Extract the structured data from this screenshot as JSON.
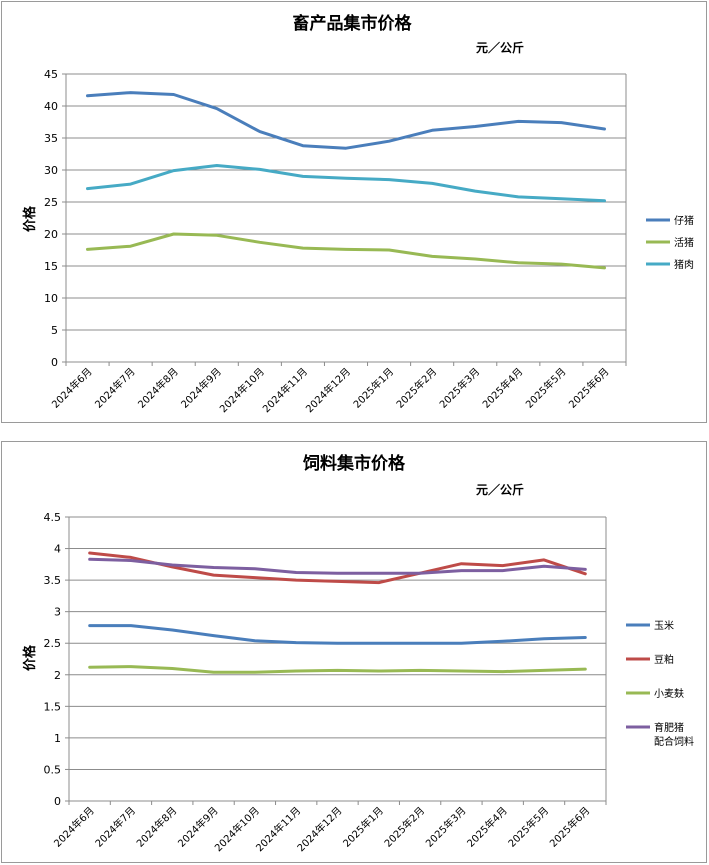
{
  "chart_data": [
    {
      "type": "line",
      "title": "畜产品集市价格",
      "unit": "元／公斤",
      "ylabel": "价格",
      "xlabel": "",
      "ylim": [
        0,
        45
      ],
      "yticks": [
        0,
        5,
        10,
        15,
        20,
        25,
        30,
        35,
        40,
        45
      ],
      "grid": true,
      "legend_position": "right",
      "categories": [
        "2024年6月",
        "2024年7月",
        "2024年8月",
        "2024年9月",
        "2024年10月",
        "2024年11月",
        "2024年12月",
        "2025年1月",
        "2025年2月",
        "2025年3月",
        "2025年4月",
        "2025年5月",
        "2025年6月"
      ],
      "series": [
        {
          "name": "仔猪",
          "color": "#4a7ebb",
          "values": [
            41.6,
            42.1,
            41.8,
            39.6,
            36.0,
            33.8,
            33.4,
            34.5,
            36.2,
            36.8,
            37.6,
            37.4,
            36.4
          ]
        },
        {
          "name": "活猪",
          "color": "#98b954",
          "values": [
            17.6,
            18.1,
            20.0,
            19.8,
            18.7,
            17.8,
            17.6,
            17.5,
            16.5,
            16.1,
            15.5,
            15.3,
            14.7
          ]
        },
        {
          "name": "猪肉",
          "color": "#46aac5",
          "values": [
            27.1,
            27.8,
            29.9,
            30.7,
            30.1,
            29.0,
            28.7,
            28.5,
            27.9,
            26.7,
            25.8,
            25.5,
            25.2
          ]
        }
      ]
    },
    {
      "type": "line",
      "title": "饲料集市价格",
      "unit": "元／公斤",
      "ylabel": "价格",
      "xlabel": "",
      "ylim": [
        0,
        4.5
      ],
      "yticks": [
        0,
        0.5,
        1,
        1.5,
        2,
        2.5,
        3,
        3.5,
        4,
        4.5
      ],
      "grid": true,
      "legend_position": "right",
      "categories": [
        "2024年6月",
        "2024年7月",
        "2024年8月",
        "2024年9月",
        "2024年10月",
        "2024年11月",
        "2024年12月",
        "2025年1月",
        "2025年2月",
        "2025年3月",
        "2025年4月",
        "2025年5月",
        "2025年6月"
      ],
      "series": [
        {
          "name": "玉米",
          "color": "#4a7ebb",
          "values": [
            2.78,
            2.78,
            2.71,
            2.62,
            2.54,
            2.51,
            2.5,
            2.5,
            2.5,
            2.5,
            2.53,
            2.57,
            2.59
          ]
        },
        {
          "name": "豆粕",
          "color": "#be4b48",
          "values": [
            3.93,
            3.86,
            3.71,
            3.58,
            3.54,
            3.5,
            3.48,
            3.46,
            3.61,
            3.76,
            3.73,
            3.82,
            3.6
          ]
        },
        {
          "name": "小麦麸",
          "color": "#98b954",
          "values": [
            2.12,
            2.13,
            2.1,
            2.04,
            2.04,
            2.06,
            2.07,
            2.06,
            2.07,
            2.06,
            2.05,
            2.07,
            2.09
          ]
        },
        {
          "name": "育肥猪配合饲料",
          "legend_lines": [
            "育肥猪",
            "配合饲料"
          ],
          "color": "#7d5fa0",
          "values": [
            3.83,
            3.81,
            3.74,
            3.7,
            3.68,
            3.62,
            3.61,
            3.61,
            3.61,
            3.65,
            3.65,
            3.72,
            3.67
          ]
        }
      ]
    }
  ]
}
